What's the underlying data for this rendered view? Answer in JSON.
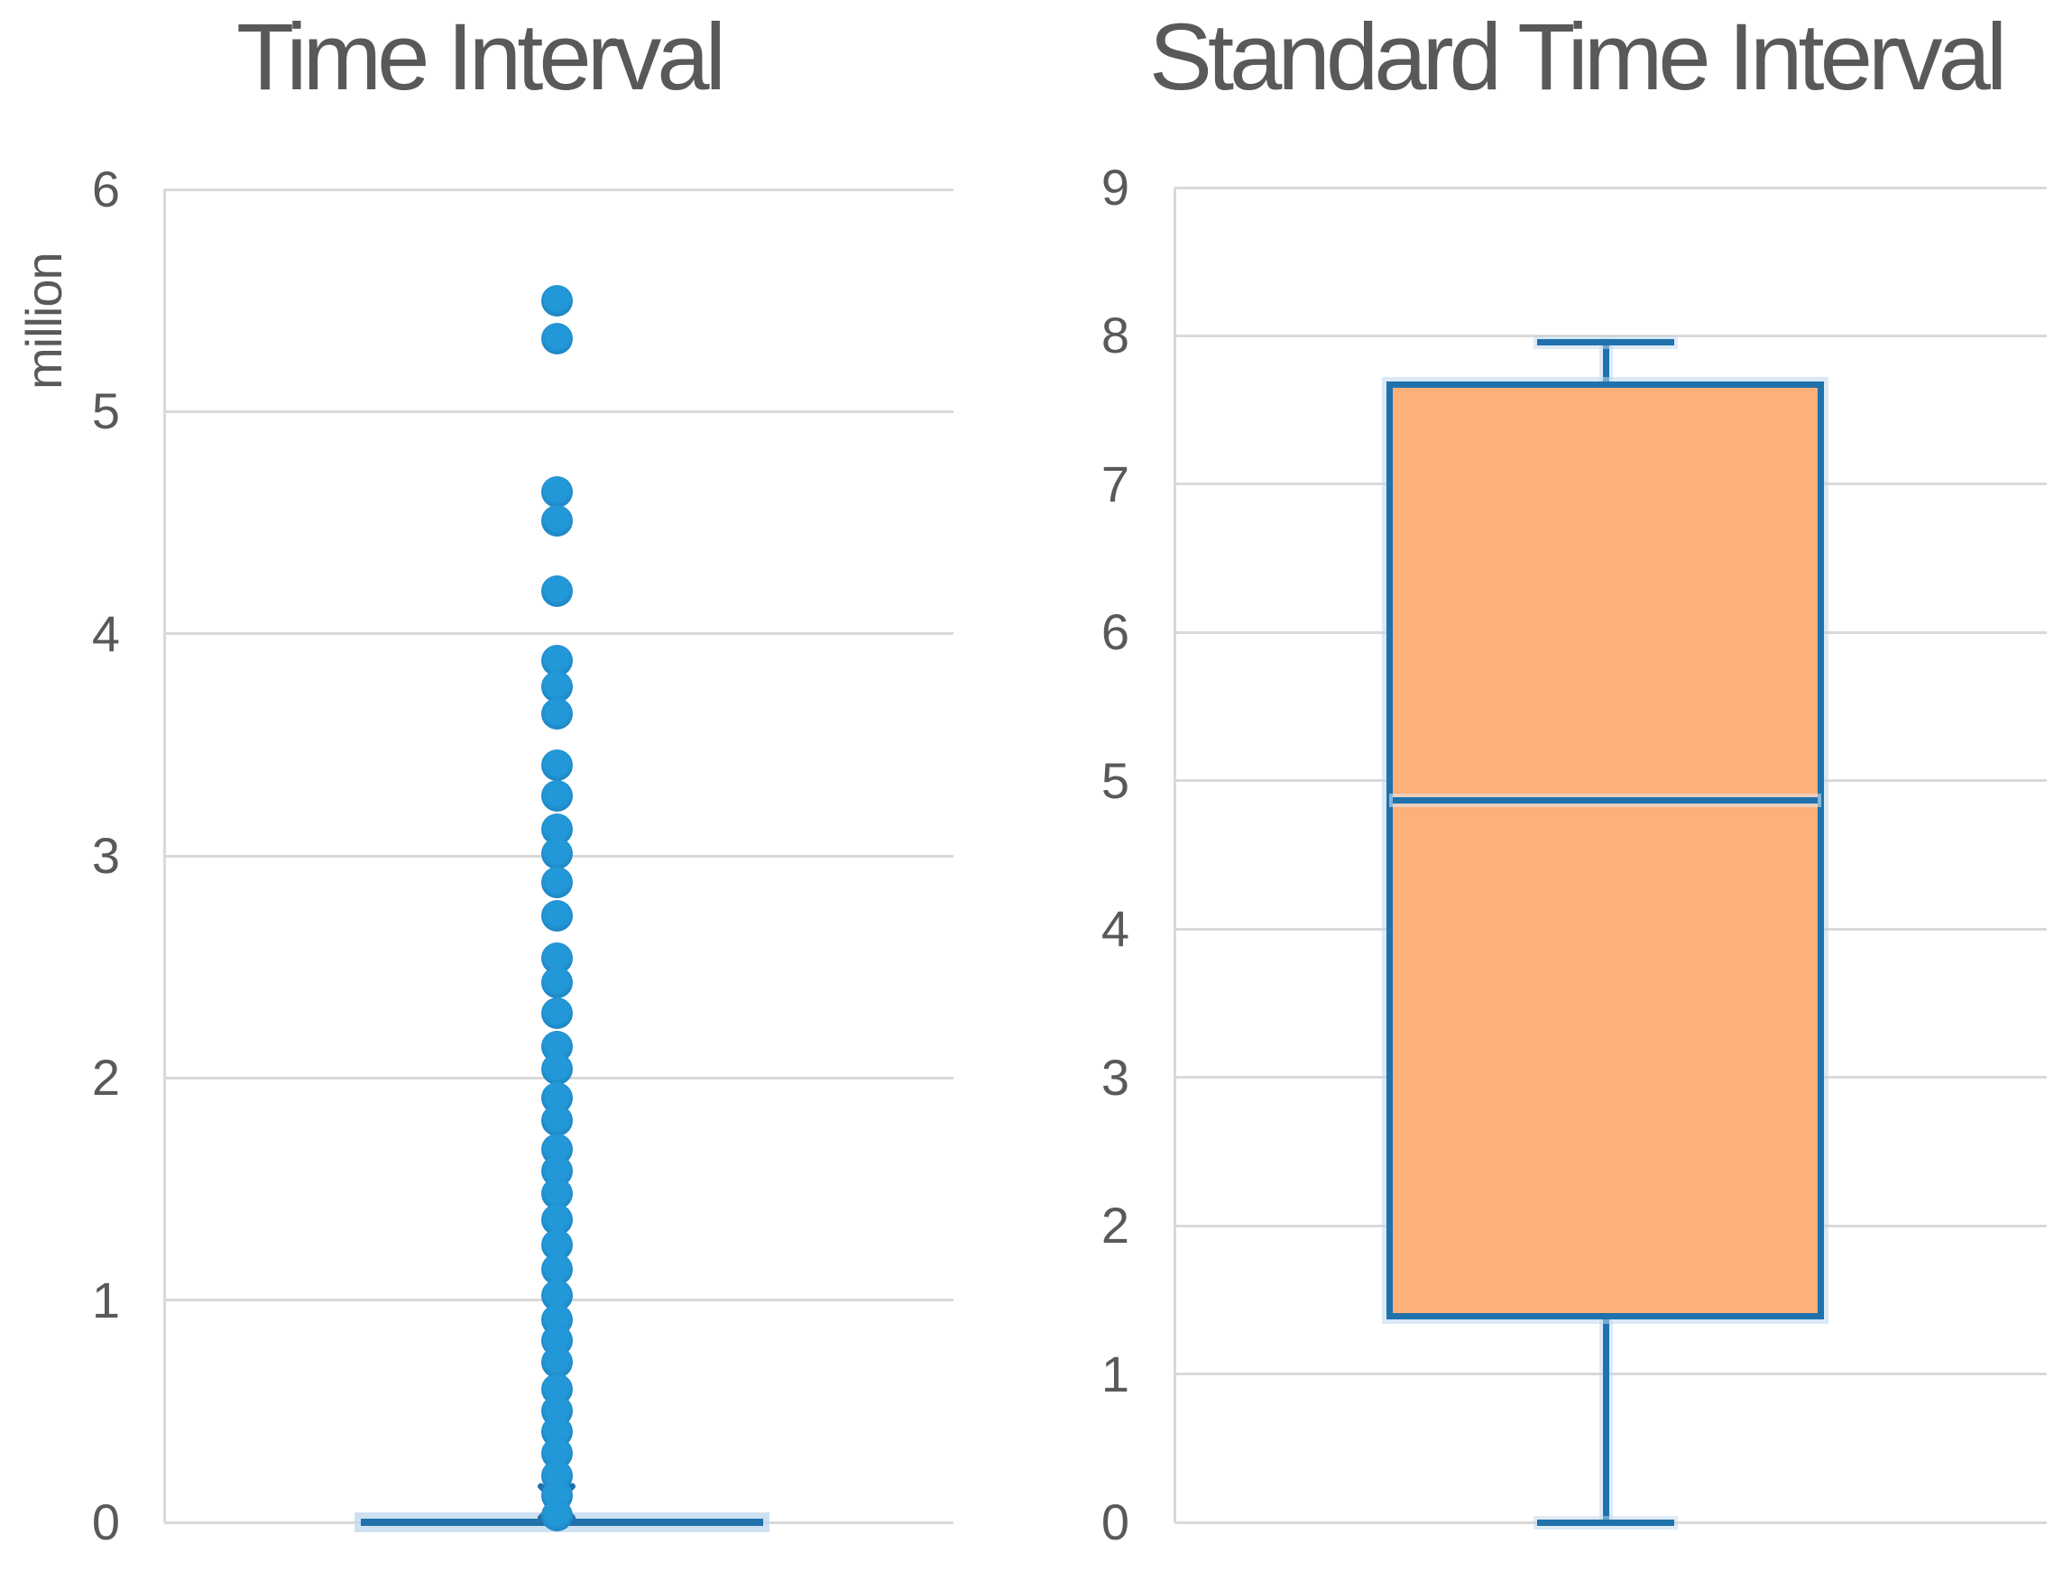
{
  "figure": {
    "background": "#ffffff"
  },
  "colors": {
    "text": "#595959",
    "gridline": "#d9d9d9",
    "dot_blue": "#1e87c5",
    "box_border_blue": "#1f72ab",
    "box_fill_orange": "#fcb07a",
    "halo_blue": "#bdd7ee"
  },
  "chart_data": [
    {
      "type": "box",
      "title": "Time Interval",
      "ylabel": "million",
      "ylim": [
        0,
        6
      ],
      "yticks": [
        6,
        5,
        4,
        3,
        2,
        1,
        0
      ],
      "grid": true,
      "legend": false,
      "series": [
        {
          "name": "Time Interval",
          "unit": "million",
          "min": 0,
          "q1": 0.005,
          "median": 0.01,
          "q3": 0.03,
          "max": 0.05,
          "mean": 0.08,
          "outliers": [
            5.5,
            5.33,
            4.64,
            4.51,
            4.19,
            3.88,
            3.76,
            3.64,
            3.41,
            3.27,
            3.12,
            3.01,
            2.88,
            2.73,
            2.54,
            2.43,
            2.29,
            2.14,
            2.04,
            1.91,
            1.81,
            1.68,
            1.58,
            1.48,
            1.36,
            1.25,
            1.14,
            1.02,
            0.91,
            0.82,
            0.72,
            0.6,
            0.5,
            0.41,
            0.31,
            0.21,
            0.12,
            0.03
          ]
        }
      ]
    },
    {
      "type": "box",
      "title": "Standard Time Interval",
      "ylabel": "",
      "ylim": [
        0,
        9
      ],
      "yticks": [
        9,
        8,
        7,
        6,
        5,
        4,
        3,
        2,
        1,
        0
      ],
      "grid": true,
      "legend": false,
      "series": [
        {
          "name": "Standard Time Interval",
          "min": 0,
          "q1": 1.37,
          "median": 4.87,
          "q3": 7.69,
          "max": 7.96,
          "mean": null,
          "outliers": []
        }
      ]
    }
  ]
}
